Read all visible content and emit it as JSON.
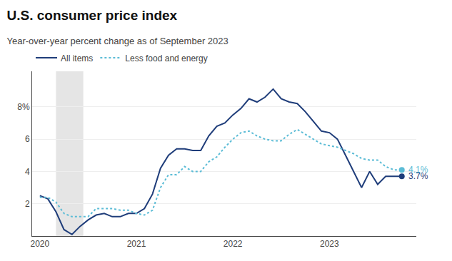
{
  "chart_data": {
    "type": "line",
    "title": "U.S. consumer price index",
    "subtitle": "Year-over-year percent change as of September 2023",
    "x": [
      2020.0,
      2020.083,
      2020.167,
      2020.25,
      2020.333,
      2020.417,
      2020.5,
      2020.583,
      2020.667,
      2020.75,
      2020.833,
      2020.917,
      2021.0,
      2021.083,
      2021.167,
      2021.25,
      2021.333,
      2021.417,
      2021.5,
      2021.583,
      2021.667,
      2021.75,
      2021.833,
      2021.917,
      2022.0,
      2022.083,
      2022.167,
      2022.25,
      2022.333,
      2022.417,
      2022.5,
      2022.583,
      2022.667,
      2022.75,
      2022.833,
      2022.917,
      2023.0,
      2023.083,
      2023.167,
      2023.25,
      2023.333,
      2023.417,
      2023.5,
      2023.583,
      2023.667,
      2023.75
    ],
    "series": [
      {
        "name": "All items",
        "color": "#1f3d7a",
        "line_style": "solid",
        "values": [
          2.5,
          2.3,
          1.5,
          0.4,
          0.1,
          0.6,
          1.0,
          1.3,
          1.4,
          1.2,
          1.2,
          1.4,
          1.4,
          1.7,
          2.6,
          4.2,
          5.0,
          5.4,
          5.4,
          5.3,
          5.3,
          6.2,
          6.8,
          7.0,
          7.5,
          7.9,
          8.5,
          8.3,
          8.6,
          9.1,
          8.5,
          8.3,
          8.2,
          7.7,
          7.1,
          6.5,
          6.4,
          6.0,
          5.0,
          4.0,
          3.0,
          4.0,
          3.2,
          3.7,
          3.7,
          3.7
        ]
      },
      {
        "name": "Less food and energy",
        "color": "#5bbcd6",
        "line_style": "dotted",
        "values": [
          2.4,
          2.4,
          2.1,
          1.4,
          1.2,
          1.2,
          1.2,
          1.7,
          1.7,
          1.7,
          1.6,
          1.6,
          1.4,
          1.3,
          1.6,
          3.0,
          3.8,
          3.8,
          4.3,
          4.0,
          4.0,
          4.6,
          4.9,
          5.5,
          6.0,
          6.4,
          6.5,
          6.2,
          6.0,
          5.9,
          5.9,
          6.3,
          6.6,
          6.3,
          6.0,
          5.7,
          5.6,
          5.5,
          5.3,
          5.1,
          4.8,
          4.7,
          4.7,
          4.3,
          4.1,
          4.1
        ]
      }
    ],
    "annotations": [
      {
        "x": 2023.75,
        "y": 4.1,
        "text": "4.1%",
        "color": "#5bbcd6"
      },
      {
        "x": 2023.75,
        "y": 3.7,
        "text": "3.7%",
        "color": "#1f3d7a"
      }
    ],
    "shade": {
      "x": [
        2020.167,
        2020.45
      ],
      "color": "#e5e5e5"
    },
    "xlim": [
      2019.92,
      2023.9
    ],
    "xticks": [
      2020,
      2021,
      2022,
      2023
    ],
    "ylim": [
      0,
      10.2
    ],
    "yticks": [
      2,
      4,
      6,
      {
        "value": 8,
        "label": "8%"
      }
    ],
    "grid": "y",
    "legend": "top"
  }
}
